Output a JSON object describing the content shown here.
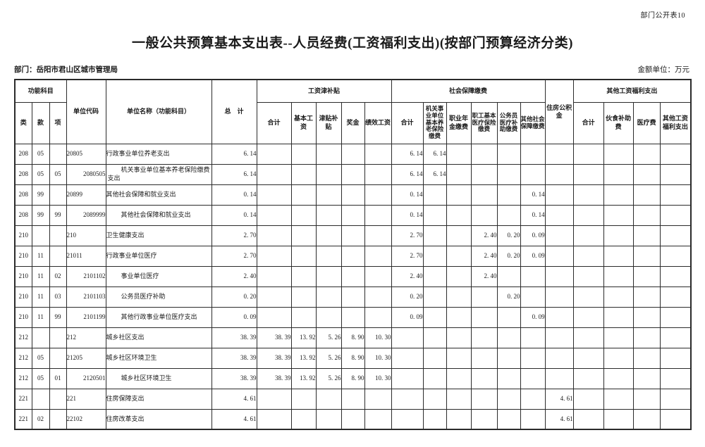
{
  "page": {
    "doc_label": "部门公开表10",
    "title": "一般公共预算基本支出表--人员经费(工资福利支出)(按部门预算经济分类)",
    "department": "部门：岳阳市君山区城市管理局",
    "unit_note": "金额单位：万元"
  },
  "table": {
    "header": {
      "func_group": "功能科目",
      "cols_lkx": [
        "类",
        "款",
        "项"
      ],
      "unit_code": "单位代码",
      "unit_name": "单位名称（功能科目）",
      "total": "总　计",
      "wage_group": "工资津补贴",
      "wage_cols": [
        "合计",
        "基本工资",
        "津贴补贴",
        "奖金",
        "绩效工资"
      ],
      "social_group": "社会保障缴费",
      "social_cols": [
        "合计",
        "机关事业单位基本养老保险缴费",
        "职业年金缴费",
        "职工基本医疗保险缴费",
        "公务员医疗补助缴费",
        "其他社会保障缴费"
      ],
      "housing": "住房公积金",
      "other_group": "其他工资福利支出",
      "other_cols": [
        "合计",
        "伙食补助费",
        "医疗费",
        "其他工资福利支出"
      ]
    },
    "col_keys": [
      "lei",
      "kuan",
      "xiang",
      "code",
      "name",
      "total",
      "wage_total",
      "wage_basic",
      "wage_allowance",
      "wage_bonus",
      "wage_performance",
      "social_total",
      "social_pension",
      "social_annuity",
      "social_medical",
      "social_civil_servant",
      "social_other",
      "housing_fund",
      "other_total",
      "other_meal",
      "other_medical",
      "other_welfare"
    ],
    "rows": [
      {
        "indent": false,
        "cells": [
          "208",
          "05",
          "",
          "20805",
          "行政事业单位养老支出",
          "6. 14",
          "",
          "",
          "",
          "",
          "",
          "6. 14",
          "6. 14",
          "",
          "",
          "",
          "",
          "",
          "",
          "",
          "",
          ""
        ]
      },
      {
        "indent": true,
        "cells": [
          "208",
          "05",
          "05",
          "2080505",
          "机关事业单位基本养老保险缴费支出",
          "6. 14",
          "",
          "",
          "",
          "",
          "",
          "6. 14",
          "6. 14",
          "",
          "",
          "",
          "",
          "",
          "",
          "",
          "",
          ""
        ]
      },
      {
        "indent": false,
        "cells": [
          "208",
          "99",
          "",
          "20899",
          "其他社会保障和就业支出",
          "0. 14",
          "",
          "",
          "",
          "",
          "",
          "0. 14",
          "",
          "",
          "",
          "",
          "0. 14",
          "",
          "",
          "",
          "",
          ""
        ]
      },
      {
        "indent": true,
        "cells": [
          "208",
          "99",
          "99",
          "2089999",
          "其他社会保障和就业支出",
          "0. 14",
          "",
          "",
          "",
          "",
          "",
          "0. 14",
          "",
          "",
          "",
          "",
          "0. 14",
          "",
          "",
          "",
          "",
          ""
        ]
      },
      {
        "indent": false,
        "cells": [
          "210",
          "",
          "",
          "210",
          "卫生健康支出",
          "2. 70",
          "",
          "",
          "",
          "",
          "",
          "2. 70",
          "",
          "",
          "2. 40",
          "0. 20",
          "0. 09",
          "",
          "",
          "",
          "",
          ""
        ]
      },
      {
        "indent": false,
        "cells": [
          "210",
          "11",
          "",
          "21011",
          "行政事业单位医疗",
          "2. 70",
          "",
          "",
          "",
          "",
          "",
          "2. 70",
          "",
          "",
          "2. 40",
          "0. 20",
          "0. 09",
          "",
          "",
          "",
          "",
          ""
        ]
      },
      {
        "indent": true,
        "cells": [
          "210",
          "11",
          "02",
          "2101102",
          "事业单位医疗",
          "2. 40",
          "",
          "",
          "",
          "",
          "",
          "2. 40",
          "",
          "",
          "2. 40",
          "",
          "",
          "",
          "",
          "",
          "",
          ""
        ]
      },
      {
        "indent": true,
        "cells": [
          "210",
          "11",
          "03",
          "2101103",
          "公务员医疗补助",
          "0. 20",
          "",
          "",
          "",
          "",
          "",
          "0. 20",
          "",
          "",
          "",
          "0. 20",
          "",
          "",
          "",
          "",
          "",
          ""
        ]
      },
      {
        "indent": true,
        "cells": [
          "210",
          "11",
          "99",
          "2101199",
          "其他行政事业单位医疗支出",
          "0. 09",
          "",
          "",
          "",
          "",
          "",
          "0. 09",
          "",
          "",
          "",
          "",
          "0. 09",
          "",
          "",
          "",
          "",
          ""
        ]
      },
      {
        "indent": false,
        "cells": [
          "212",
          "",
          "",
          "212",
          "城乡社区支出",
          "38. 39",
          "38. 39",
          "13. 92",
          "5. 26",
          "8. 90",
          "10. 30",
          "",
          "",
          "",
          "",
          "",
          "",
          "",
          "",
          "",
          "",
          ""
        ]
      },
      {
        "indent": false,
        "cells": [
          "212",
          "05",
          "",
          "21205",
          "城乡社区环境卫生",
          "38. 39",
          "38. 39",
          "13. 92",
          "5. 26",
          "8. 90",
          "10. 30",
          "",
          "",
          "",
          "",
          "",
          "",
          "",
          "",
          "",
          "",
          ""
        ]
      },
      {
        "indent": true,
        "cells": [
          "212",
          "05",
          "01",
          "2120501",
          "城乡社区环境卫生",
          "38. 39",
          "38. 39",
          "13. 92",
          "5. 26",
          "8. 90",
          "10. 30",
          "",
          "",
          "",
          "",
          "",
          "",
          "",
          "",
          "",
          "",
          ""
        ]
      },
      {
        "indent": false,
        "cells": [
          "221",
          "",
          "",
          "221",
          "住房保障支出",
          "4. 61",
          "",
          "",
          "",
          "",
          "",
          "",
          "",
          "",
          "",
          "",
          "",
          "4. 61",
          "",
          "",
          "",
          ""
        ]
      },
      {
        "indent": false,
        "cells": [
          "221",
          "02",
          "",
          "22102",
          "住房改革支出",
          "4. 61",
          "",
          "",
          "",
          "",
          "",
          "",
          "",
          "",
          "",
          "",
          "",
          "4. 61",
          "",
          "",
          "",
          ""
        ]
      }
    ]
  }
}
